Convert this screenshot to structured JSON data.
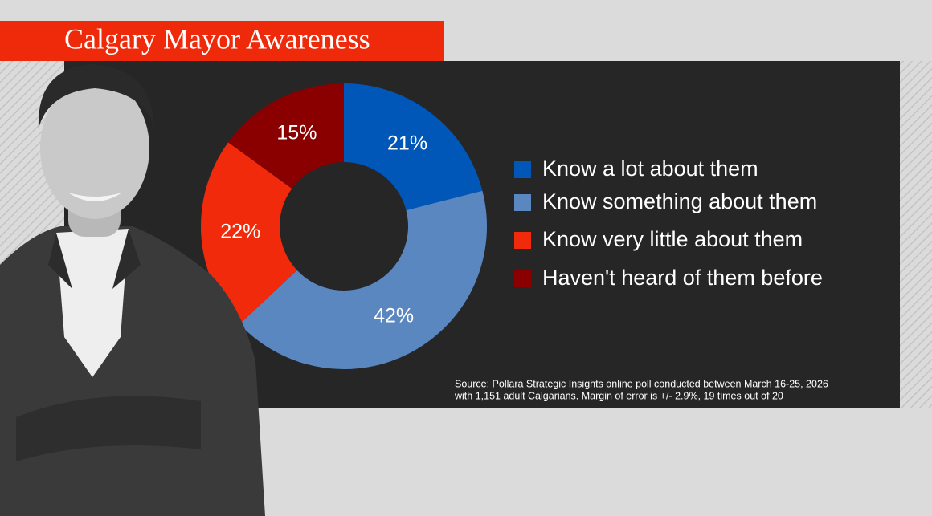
{
  "chart_data": {
    "type": "donut",
    "title": "Calgary Mayor Awareness",
    "categories": [
      "Know a lot about them",
      "Know something about them",
      "Know very little about them",
      "Haven't heard of them before"
    ],
    "values": [
      21,
      42,
      22,
      15
    ],
    "value_labels": [
      "21%",
      "42%",
      "22%",
      "15%"
    ],
    "colors": [
      "#0057b8",
      "#5a87c0",
      "#f02a0a",
      "#8a0000"
    ],
    "legend": "right",
    "source": [
      "Source: Pollara Strategic Insights online poll conducted between March 16-25, 2026",
      "with 1,151 adult Calgarians. Margin of error is +/- 2.9%, 19 times out of 20"
    ]
  }
}
